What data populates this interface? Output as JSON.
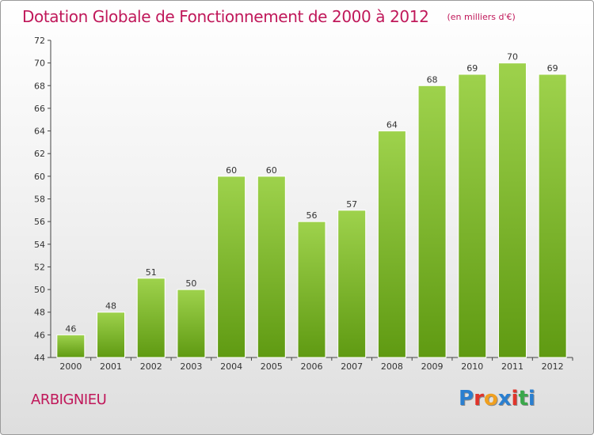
{
  "header": {
    "title": "Dotation Globale de Fonctionnement de 2000 à 2012",
    "subtitle": "(en milliers d'€)"
  },
  "footer": {
    "commune": "ARBIGNIEU",
    "logo_text": "Proxiti"
  },
  "colors": {
    "title": "#c0185a",
    "bar_top": "#9ed24c",
    "bar_bottom": "#5f9a12",
    "logo_letters": [
      "#2a7fd0",
      "#e0342a",
      "#f0a020",
      "#2a7fd0",
      "#e0342a",
      "#3aa84a",
      "#2a7fd0"
    ]
  },
  "chart_data": {
    "type": "bar",
    "categories": [
      "2000",
      "2001",
      "2002",
      "2003",
      "2004",
      "2005",
      "2006",
      "2007",
      "2008",
      "2009",
      "2010",
      "2011",
      "2012"
    ],
    "values": [
      46,
      48,
      51,
      50,
      60,
      60,
      56,
      57,
      64,
      68,
      69,
      70,
      69
    ],
    "title": "Dotation Globale de Fonctionnement de 2000 à 2012",
    "subtitle": "(en milliers d'€)",
    "xlabel": "",
    "ylabel": "",
    "ylim": [
      44,
      72
    ],
    "yticks": [
      44,
      46,
      48,
      50,
      52,
      54,
      56,
      58,
      60,
      62,
      64,
      66,
      68,
      70,
      72
    ],
    "grid": false,
    "legend": "none"
  }
}
